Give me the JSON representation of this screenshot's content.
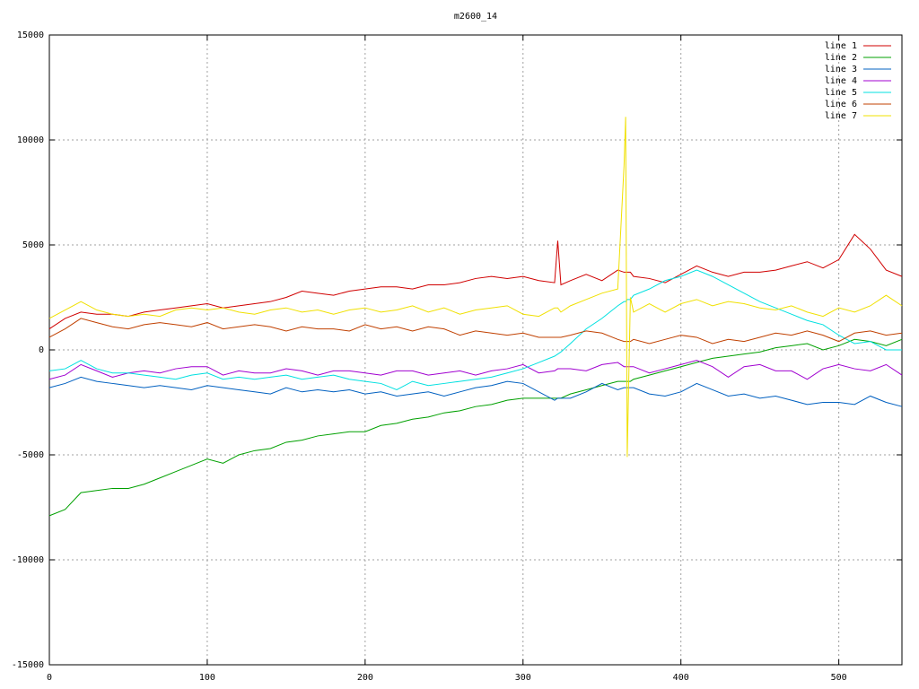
{
  "chart_data": {
    "type": "line",
    "title": "m2600_14",
    "x": [
      0,
      10,
      20,
      30,
      40,
      50,
      60,
      70,
      80,
      90,
      100,
      110,
      120,
      130,
      140,
      150,
      160,
      170,
      180,
      190,
      200,
      210,
      220,
      230,
      240,
      250,
      260,
      270,
      280,
      290,
      300,
      310,
      320,
      322,
      324,
      330,
      340,
      350,
      360,
      364,
      365,
      366,
      368,
      370,
      380,
      390,
      400,
      410,
      420,
      430,
      440,
      450,
      460,
      470,
      480,
      490,
      500,
      510,
      520,
      530,
      540
    ],
    "series": [
      {
        "name": "line 1",
        "color": "#d00000",
        "values": [
          1000,
          1500,
          1800,
          1700,
          1700,
          1600,
          1800,
          1900,
          2000,
          2100,
          2200,
          2000,
          2100,
          2200,
          2300,
          2500,
          2800,
          2700,
          2600,
          2800,
          2900,
          3000,
          3000,
          2900,
          3100,
          3100,
          3200,
          3400,
          3500,
          3400,
          3500,
          3300,
          3200,
          5200,
          3100,
          3300,
          3600,
          3300,
          3800,
          3700,
          3700,
          3700,
          3700,
          3500,
          3400,
          3200,
          3600,
          4000,
          3700,
          3500,
          3700,
          3700,
          3800,
          4000,
          4200,
          3900,
          4300,
          5500,
          4800,
          3800,
          3500
        ]
      },
      {
        "name": "line 2",
        "color": "#00a000",
        "values": [
          -7900,
          -7600,
          -6800,
          -6700,
          -6600,
          -6600,
          -6400,
          -6100,
          -5800,
          -5500,
          -5200,
          -5400,
          -5000,
          -4800,
          -4700,
          -4400,
          -4300,
          -4100,
          -4000,
          -3900,
          -3900,
          -3600,
          -3500,
          -3300,
          -3200,
          -3000,
          -2900,
          -2700,
          -2600,
          -2400,
          -2300,
          -2300,
          -2300,
          -2300,
          -2300,
          -2100,
          -1900,
          -1700,
          -1500,
          -1500,
          -1500,
          -1500,
          -1500,
          -1400,
          -1200,
          -1000,
          -800,
          -600,
          -400,
          -300,
          -200,
          -100,
          100,
          200,
          300,
          0,
          200,
          500,
          400,
          200,
          500
        ]
      },
      {
        "name": "line 3",
        "color": "#0060c0",
        "values": [
          -1800,
          -1600,
          -1300,
          -1500,
          -1600,
          -1700,
          -1800,
          -1700,
          -1800,
          -1900,
          -1700,
          -1800,
          -1900,
          -2000,
          -2100,
          -1800,
          -2000,
          -1900,
          -2000,
          -1900,
          -2100,
          -2000,
          -2200,
          -2100,
          -2000,
          -2200,
          -2000,
          -1800,
          -1700,
          -1500,
          -1600,
          -2000,
          -2400,
          -2300,
          -2300,
          -2300,
          -2000,
          -1600,
          -1900,
          -1800,
          -1800,
          -1800,
          -1800,
          -1800,
          -2100,
          -2200,
          -2000,
          -1600,
          -1900,
          -2200,
          -2100,
          -2300,
          -2200,
          -2400,
          -2600,
          -2500,
          -2500,
          -2600,
          -2200,
          -2500,
          -2700
        ]
      },
      {
        "name": "line 4",
        "color": "#a000d0",
        "values": [
          -1400,
          -1200,
          -700,
          -1000,
          -1300,
          -1100,
          -1000,
          -1100,
          -900,
          -800,
          -800,
          -1200,
          -1000,
          -1100,
          -1100,
          -900,
          -1000,
          -1200,
          -1000,
          -1000,
          -1100,
          -1200,
          -1000,
          -1000,
          -1200,
          -1100,
          -1000,
          -1200,
          -1000,
          -900,
          -700,
          -1100,
          -1000,
          -900,
          -900,
          -900,
          -1000,
          -700,
          -600,
          -800,
          -800,
          -800,
          -800,
          -800,
          -1100,
          -900,
          -700,
          -500,
          -800,
          -1300,
          -800,
          -700,
          -1000,
          -1000,
          -1400,
          -900,
          -700,
          -900,
          -1000,
          -700,
          -1200
        ]
      },
      {
        "name": "line 5",
        "color": "#00e0e0",
        "values": [
          -1000,
          -900,
          -500,
          -900,
          -1100,
          -1100,
          -1200,
          -1300,
          -1400,
          -1200,
          -1100,
          -1400,
          -1300,
          -1400,
          -1300,
          -1200,
          -1400,
          -1300,
          -1200,
          -1400,
          -1500,
          -1600,
          -1900,
          -1500,
          -1700,
          -1600,
          -1500,
          -1400,
          -1300,
          -1100,
          -900,
          -600,
          -300,
          -200,
          -100,
          300,
          1000,
          1500,
          2100,
          2300,
          2300,
          2400,
          2400,
          2600,
          2900,
          3300,
          3500,
          3800,
          3500,
          3100,
          2700,
          2300,
          2000,
          1700,
          1400,
          1200,
          700,
          300,
          400,
          0,
          0
        ]
      },
      {
        "name": "line 6",
        "color": "#c04000",
        "values": [
          600,
          1000,
          1500,
          1300,
          1100,
          1000,
          1200,
          1300,
          1200,
          1100,
          1300,
          1000,
          1100,
          1200,
          1100,
          900,
          1100,
          1000,
          1000,
          900,
          1200,
          1000,
          1100,
          900,
          1100,
          1000,
          700,
          900,
          800,
          700,
          800,
          600,
          600,
          600,
          600,
          700,
          900,
          800,
          500,
          400,
          400,
          400,
          400,
          500,
          300,
          500,
          700,
          600,
          300,
          500,
          400,
          600,
          800,
          700,
          900,
          700,
          400,
          800,
          900,
          700,
          800
        ]
      },
      {
        "name": "line 7",
        "color": "#f0e000",
        "values": [
          1500,
          1900,
          2300,
          1900,
          1700,
          1600,
          1700,
          1600,
          1900,
          2000,
          1900,
          2000,
          1800,
          1700,
          1900,
          2000,
          1800,
          1900,
          1700,
          1900,
          2000,
          1800,
          1900,
          2100,
          1800,
          2000,
          1700,
          1900,
          2000,
          2100,
          1700,
          1600,
          2000,
          2000,
          1800,
          2100,
          2400,
          2700,
          2900,
          8800,
          11100,
          -5100,
          2500,
          1800,
          2200,
          1800,
          2200,
          2400,
          2100,
          2300,
          2200,
          2000,
          1900,
          2100,
          1800,
          1600,
          2000,
          1800,
          2100,
          2600,
          2100
        ]
      }
    ],
    "xlim": [
      0,
      540
    ],
    "xticks": [
      0,
      100,
      200,
      300,
      400,
      500
    ],
    "ylim": [
      -15000,
      15000
    ],
    "yticks": [
      -15000,
      -10000,
      -5000,
      0,
      5000,
      10000,
      15000
    ],
    "grid": true,
    "legend": "top-right"
  }
}
